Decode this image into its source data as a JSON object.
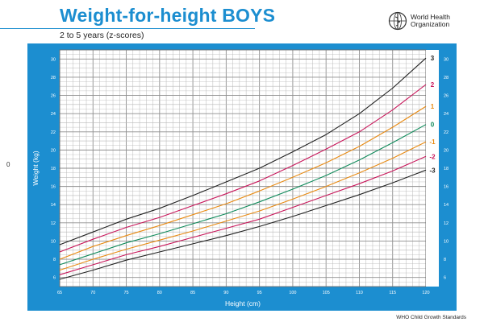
{
  "header": {
    "title": "Weight-for-height BOYS",
    "subtitle": "2 to 5 years (z-scores)",
    "org_line1": "World Health",
    "org_line2": "Organization",
    "left_mark": "0"
  },
  "footer": {
    "text": "WHO Child Growth Standards"
  },
  "colors": {
    "frame": "#1c8ed0",
    "grid": "#b9b9b9",
    "z3": "#222222",
    "z2": "#c8165a",
    "z1": "#e88a12",
    "z0": "#0f8a5a",
    "zm1": "#e88a12",
    "zm2": "#c8165a",
    "zm3": "#222222"
  },
  "chart_data": {
    "type": "line",
    "title": "Weight-for-height BOYS",
    "subtitle": "2 to 5 years (z-scores)",
    "xlabel": "Height (cm)",
    "ylabel": "Weight (kg)",
    "xlim": [
      65,
      120
    ],
    "ylim": [
      5,
      31
    ],
    "x_ticks": [
      "65",
      "70",
      "75",
      "80",
      "85",
      "90",
      "95",
      "100",
      "105",
      "110",
      "115",
      "120"
    ],
    "y_ticks": [
      "6",
      "8",
      "10",
      "12",
      "14",
      "16",
      "18",
      "20",
      "22",
      "24",
      "26",
      "28",
      "30"
    ],
    "grid": true,
    "x": [
      65,
      70,
      75,
      80,
      85,
      90,
      95,
      100,
      105,
      110,
      115,
      120
    ],
    "series": [
      {
        "name": "3",
        "values": [
          9.6,
          11.0,
          12.4,
          13.6,
          15.0,
          16.5,
          18.0,
          19.8,
          21.7,
          24.0,
          26.8,
          30.1
        ]
      },
      {
        "name": "2",
        "values": [
          8.8,
          10.2,
          11.5,
          12.6,
          13.9,
          15.2,
          16.6,
          18.3,
          20.1,
          22.0,
          24.4,
          27.2
        ]
      },
      {
        "name": "1",
        "values": [
          8.0,
          9.4,
          10.6,
          11.7,
          12.9,
          14.1,
          15.5,
          17.0,
          18.6,
          20.4,
          22.5,
          24.8
        ]
      },
      {
        "name": "0",
        "values": [
          7.4,
          8.6,
          9.8,
          10.8,
          11.9,
          13.0,
          14.3,
          15.7,
          17.2,
          18.9,
          20.8,
          22.8
        ]
      },
      {
        "name": "-1",
        "values": [
          6.8,
          8.0,
          9.1,
          10.1,
          11.1,
          12.2,
          13.3,
          14.6,
          16.0,
          17.5,
          19.1,
          20.9
        ]
      },
      {
        "name": "-2",
        "values": [
          6.3,
          7.4,
          8.5,
          9.4,
          10.4,
          11.4,
          12.4,
          13.7,
          15.0,
          16.3,
          17.7,
          19.3
        ]
      },
      {
        "name": "-3",
        "values": [
          5.8,
          6.8,
          7.9,
          8.8,
          9.7,
          10.6,
          11.6,
          12.7,
          13.9,
          15.1,
          16.4,
          17.8
        ]
      }
    ]
  }
}
